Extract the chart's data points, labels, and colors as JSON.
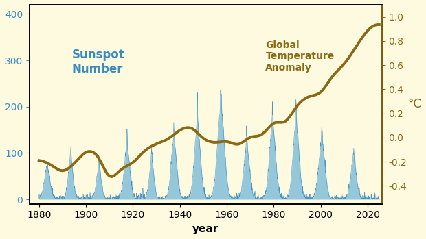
{
  "background_color": "#FEFAE0",
  "bar_color": "#5BACD8",
  "bar_edge_color": "#3A8CC0",
  "line_color": "#8B6914",
  "sunspot_label_color": "#3A8CC0",
  "temp_label_color": "#8B6914",
  "left_ylim": [
    -10,
    420
  ],
  "right_ylim": [
    -0.55,
    1.1
  ],
  "left_yticks": [
    0,
    100,
    200,
    300,
    400
  ],
  "right_yticks": [
    -0.4,
    -0.2,
    0.0,
    0.2,
    0.4,
    0.6,
    0.8,
    1.0
  ],
  "xlim": [
    1876,
    2026
  ],
  "xticks": [
    1880,
    1900,
    1920,
    1940,
    1960,
    1980,
    2000,
    2020
  ],
  "xlabel": "year",
  "right_ylabel": "°C",
  "tick_fontsize": 10,
  "peaks_data": [
    [
      1883.5,
      1.2,
      63
    ],
    [
      1893.5,
      1.0,
      85
    ],
    [
      1905.5,
      1.0,
      65
    ],
    [
      1917.5,
      1.2,
      107
    ],
    [
      1928.0,
      1.0,
      79
    ],
    [
      1937.5,
      1.2,
      120
    ],
    [
      1947.5,
      1.3,
      152
    ],
    [
      1957.5,
      1.5,
      190
    ],
    [
      1968.5,
      1.2,
      110
    ],
    [
      1979.5,
      1.3,
      155
    ],
    [
      1989.5,
      1.3,
      158
    ],
    [
      2000.5,
      1.3,
      120
    ],
    [
      2014.0,
      1.2,
      82
    ]
  ],
  "temp_control_years": [
    1880,
    1885,
    1890,
    1895,
    1900,
    1905,
    1910,
    1915,
    1920,
    1925,
    1930,
    1935,
    1940,
    1945,
    1950,
    1955,
    1960,
    1965,
    1970,
    1975,
    1980,
    1985,
    1990,
    1995,
    2000,
    2005,
    2010,
    2015,
    2020,
    2024
  ],
  "temp_control_vals": [
    -0.18,
    -0.22,
    -0.3,
    -0.22,
    -0.1,
    -0.12,
    -0.38,
    -0.25,
    -0.22,
    -0.1,
    -0.05,
    -0.02,
    0.07,
    0.1,
    -0.02,
    -0.05,
    -0.02,
    -0.08,
    0.02,
    0.0,
    0.15,
    0.1,
    0.28,
    0.35,
    0.35,
    0.52,
    0.6,
    0.75,
    0.9,
    0.95
  ]
}
